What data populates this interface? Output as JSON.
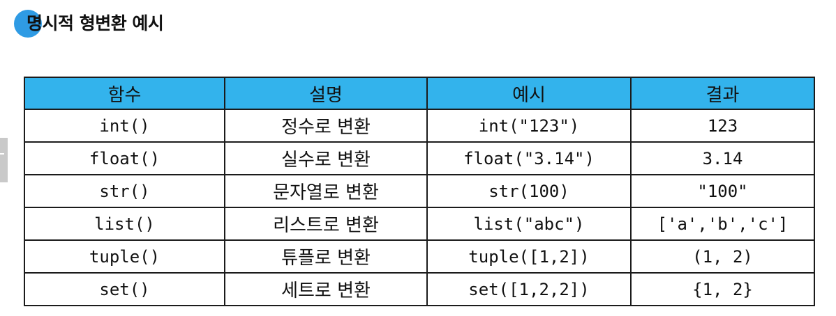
{
  "heading": {
    "title": "명시적 형변환 예시"
  },
  "table": {
    "headers": {
      "function": "함수",
      "description": "설명",
      "example": "예시",
      "result": "결과"
    },
    "rows": [
      {
        "function": "int()",
        "description": "정수로 변환",
        "example": "int(\"123\")",
        "result": "123"
      },
      {
        "function": "float()",
        "description": "실수로 변환",
        "example": "float(\"3.14\")",
        "result": "3.14"
      },
      {
        "function": "str()",
        "description": "문자열로 변환",
        "example": "str(100)",
        "result": "\"100\""
      },
      {
        "function": "list()",
        "description": "리스트로 변환",
        "example": "list(\"abc\")",
        "result": "['a','b','c']"
      },
      {
        "function": "tuple()",
        "description": "튜플로 변환",
        "example": "tuple([1,2])",
        "result": "(1, 2)"
      },
      {
        "function": "set()",
        "description": "세트로 변환",
        "example": "set([1,2,2])",
        "result": "{1, 2}"
      }
    ]
  },
  "colors": {
    "accent_dot": "#2f9be4",
    "header_fill": "#33b3ec",
    "border": "#1b1b1b"
  }
}
